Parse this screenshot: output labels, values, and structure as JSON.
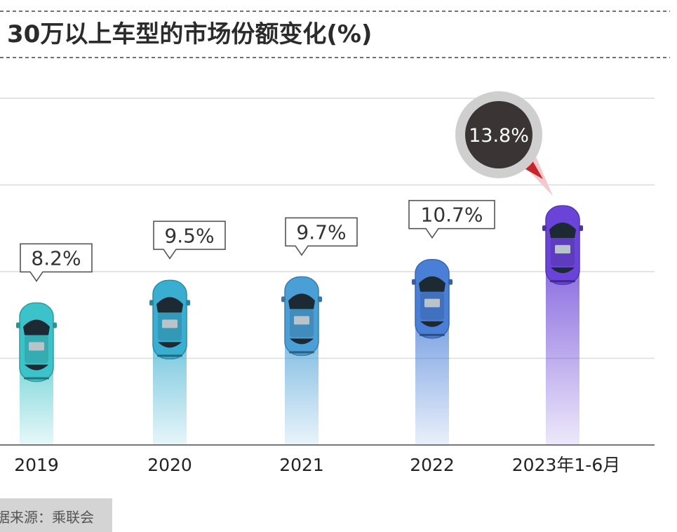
{
  "title": "30万以上车型的市场份额变化(%)",
  "source": "据来源：乘联会",
  "chart_data": {
    "type": "bar",
    "title": "30万以上车型的市场份额变化(%)",
    "categories": [
      "2019",
      "2020",
      "2021",
      "2022",
      "2023年1-6月"
    ],
    "values": [
      8.2,
      9.5,
      9.7,
      10.7,
      13.8
    ],
    "value_labels": [
      "8.2%",
      "9.5%",
      "9.7%",
      "10.7%",
      "13.8%"
    ],
    "highlight_index": 4,
    "ylim": [
      0,
      20
    ],
    "grid": true,
    "colors": [
      "#3cc3c9",
      "#3aaed0",
      "#4a9fd6",
      "#4a7fd8",
      "#6a44d8"
    ]
  }
}
